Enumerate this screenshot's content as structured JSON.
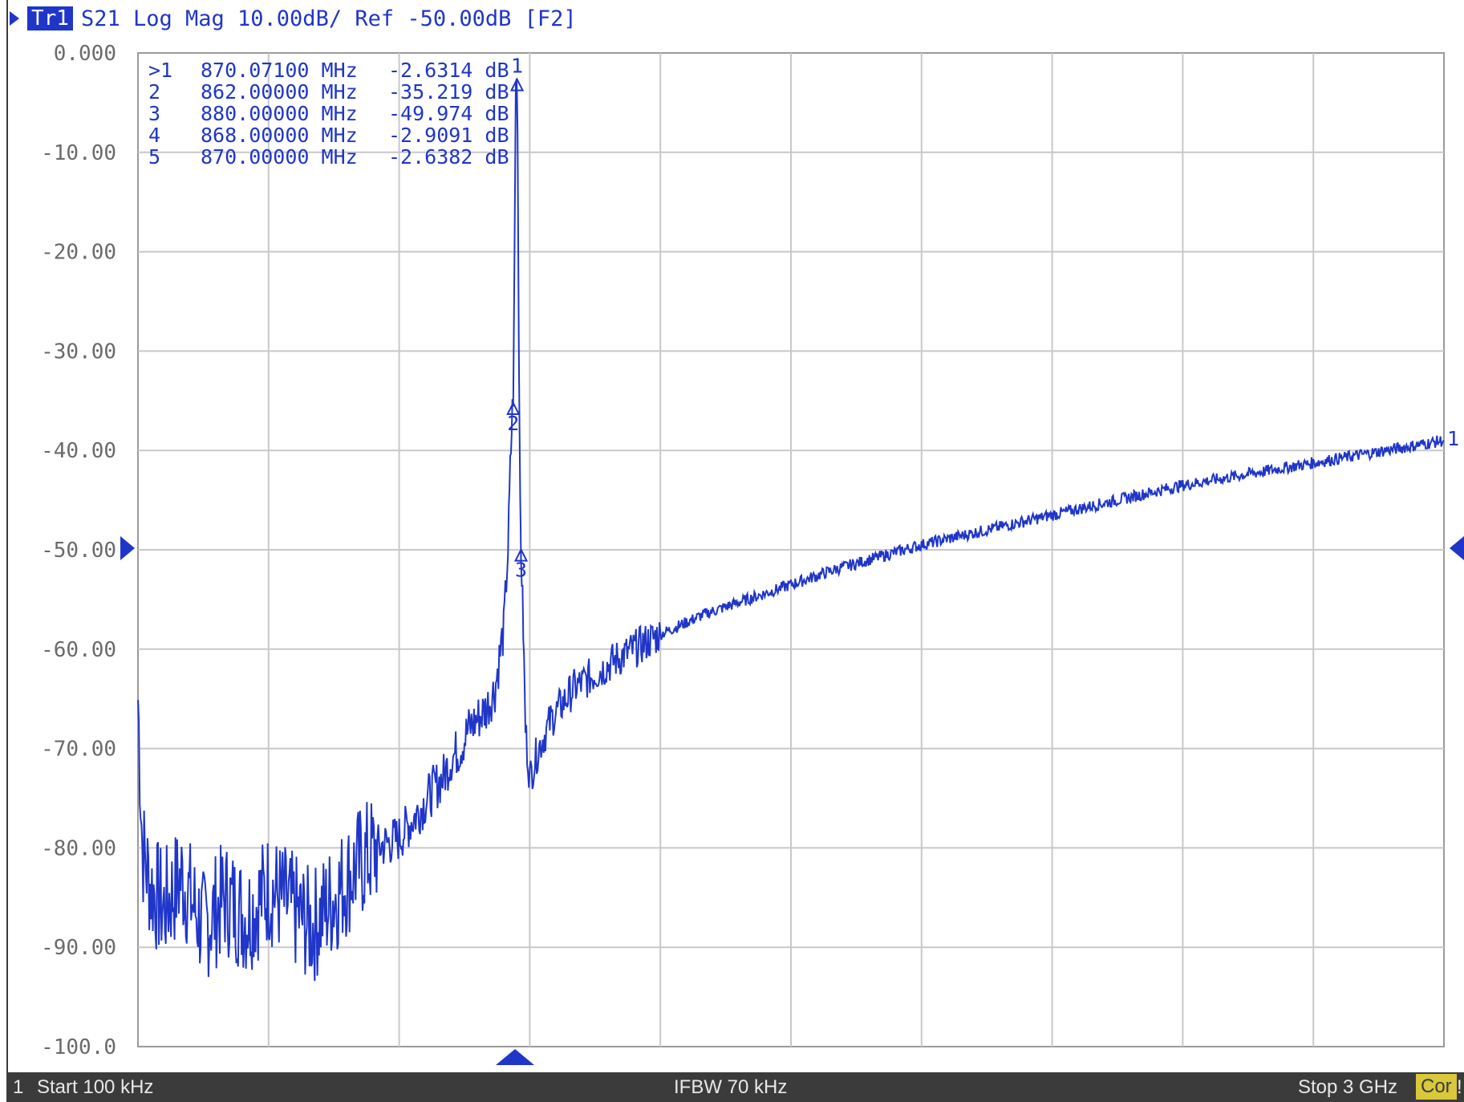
{
  "header": {
    "trace_badge": "Tr1",
    "trace_text": "S21 Log Mag 10.00dB/ Ref -50.00dB [F2]"
  },
  "y_axis_labels": [
    "0.000",
    "-10.00",
    "-20.00",
    "-30.00",
    "-40.00",
    "-50.00",
    "-60.00",
    "-70.00",
    "-80.00",
    "-90.00",
    "-100.0"
  ],
  "markers": [
    {
      "id": ">1",
      "freq": "870.07100 MHz",
      "value": "-2.6314 dB"
    },
    {
      "id": "2",
      "freq": "862.00000 MHz",
      "value": "-35.219 dB"
    },
    {
      "id": "3",
      "freq": "880.00000 MHz",
      "value": "-49.974 dB"
    },
    {
      "id": "4",
      "freq": "868.00000 MHz",
      "value": "-2.9091 dB"
    },
    {
      "id": "5",
      "freq": "870.00000 MHz",
      "value": "-2.6382 dB"
    }
  ],
  "marker_labels": {
    "m1": "1",
    "m2": "2",
    "m3": "3",
    "trace_end": "1"
  },
  "status_bar": {
    "channel": "1",
    "start": "Start 100 kHz",
    "ifbw": "IFBW 70 kHz",
    "stop": "Stop 3 GHz",
    "cor": "Cor",
    "edge": "!"
  },
  "chart_data": {
    "type": "line",
    "ylim": [
      -100,
      0
    ],
    "reference_level": -50,
    "series": [
      {
        "x": [
          0.0001,
          0.01,
          0.03,
          0.06,
          0.1,
          0.15,
          0.2,
          0.25,
          0.3,
          0.35,
          0.4,
          0.45,
          0.5,
          0.55,
          0.6,
          0.65,
          0.68,
          0.7,
          0.72,
          0.74,
          0.76,
          0.78,
          0.8,
          0.82,
          0.84,
          0.85,
          0.855,
          0.86,
          0.862,
          0.865,
          0.868,
          0.87,
          0.872,
          0.875,
          0.878,
          0.88,
          0.885,
          0.89,
          0.9,
          0.92,
          0.95,
          1.0,
          1.1,
          1.2,
          1.3,
          1.4,
          1.5,
          1.6,
          1.8,
          2.0,
          2.2,
          2.4,
          2.6,
          2.8,
          3.0
        ],
        "y": [
          -65,
          -80,
          -84,
          -86,
          -83,
          -88,
          -85,
          -87,
          -84,
          -86,
          -88,
          -85,
          -82,
          -80,
          -79,
          -76,
          -74,
          -73,
          -71,
          -70,
          -68,
          -67,
          -66,
          -64,
          -58,
          -50,
          -42,
          -36,
          -35.2,
          -20,
          -2.9,
          -2.6,
          -8,
          -30,
          -45,
          -50,
          -58,
          -68,
          -73,
          -70,
          -67,
          -64,
          -61,
          -58.5,
          -56.5,
          -55,
          -53.5,
          -52,
          -49.5,
          -47.5,
          -45.5,
          -43.5,
          -42,
          -40.5,
          -39
        ]
      }
    ]
  }
}
